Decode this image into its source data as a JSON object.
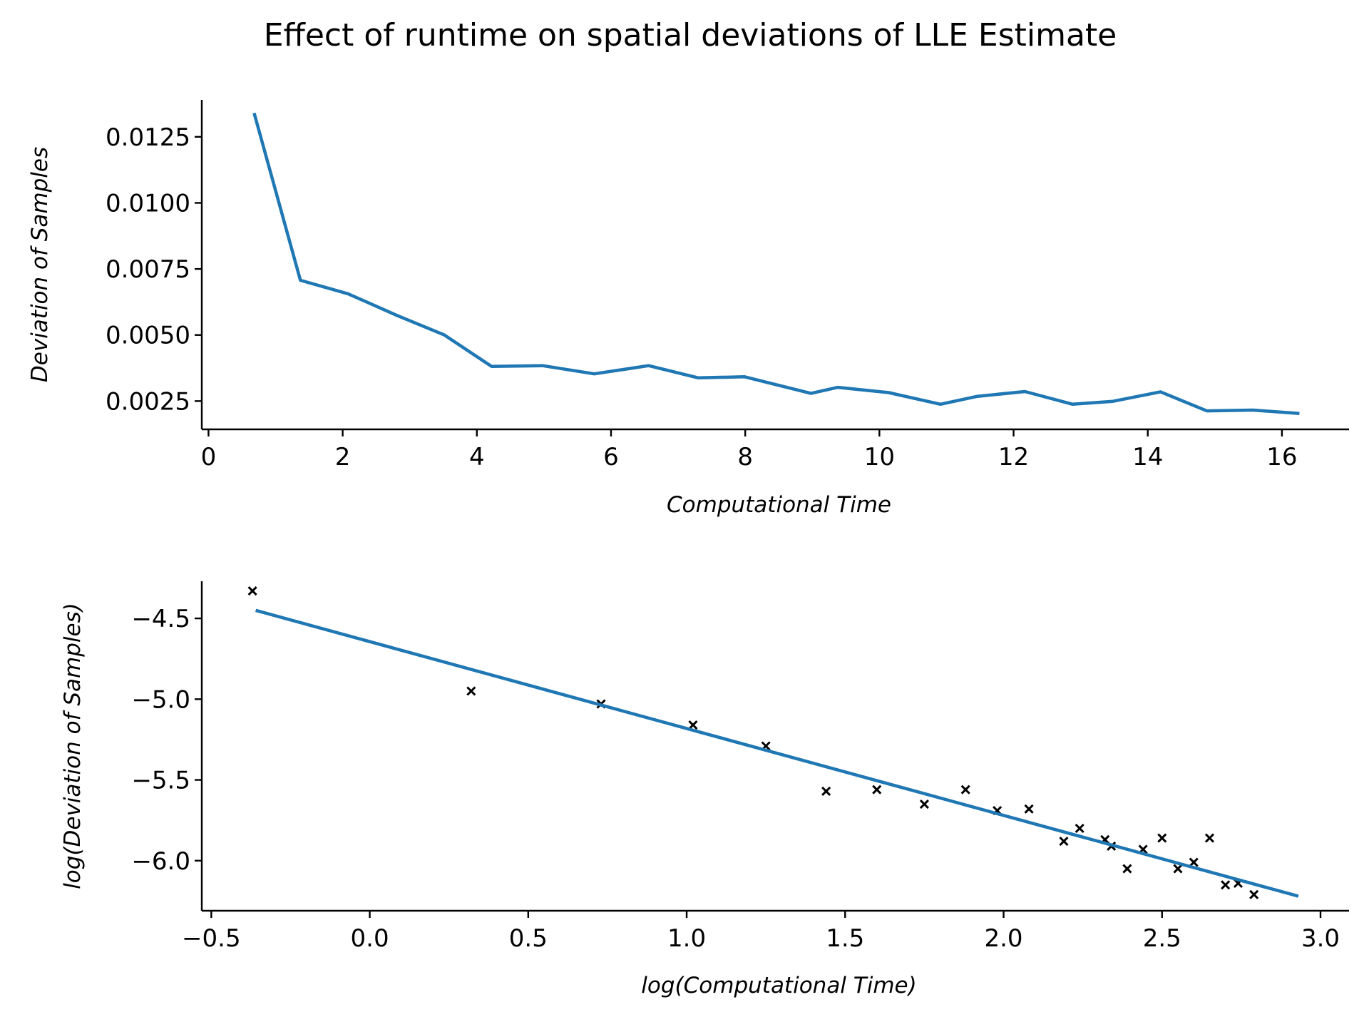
{
  "figure": {
    "suptitle": "Effect of runtime on spatial deviations of LLE Estimate"
  },
  "colors": {
    "line": "#1f77b4",
    "marker": "#000000",
    "axis": "#000000"
  },
  "chart_data": [
    {
      "type": "line",
      "title": "",
      "xlabel": "Computational Time",
      "ylabel": "Deviation of Samples",
      "xlim": [
        -0.1,
        17.0
      ],
      "ylim": [
        0.00143,
        0.0139
      ],
      "xticks": [
        0,
        2,
        4,
        6,
        8,
        10,
        12,
        14,
        16
      ],
      "xtick_labels": [
        "0",
        "2",
        "4",
        "6",
        "8",
        "10",
        "12",
        "14",
        "16"
      ],
      "yticks": [
        0.0025,
        0.005,
        0.0075,
        0.01,
        0.0125
      ],
      "ytick_labels": [
        "0.0025",
        "0.0050",
        "0.0075",
        "0.0100",
        "0.0125"
      ],
      "grid": false,
      "series": [
        {
          "x": [
            0.68,
            1.37,
            2.08,
            2.81,
            3.51,
            4.22,
            4.98,
            5.75,
            6.56,
            7.3,
            7.99,
            8.98,
            9.38,
            10.14,
            10.91,
            11.46,
            12.17,
            12.88,
            13.48,
            14.19,
            14.88,
            15.57,
            16.26
          ],
          "y": [
            0.0134,
            0.00707,
            0.00656,
            0.00574,
            0.00501,
            0.00381,
            0.00384,
            0.00353,
            0.00384,
            0.00338,
            0.00342,
            0.00279,
            0.00302,
            0.00282,
            0.00238,
            0.00268,
            0.00286,
            0.00238,
            0.00249,
            0.00285,
            0.00213,
            0.00216,
            0.00203
          ]
        }
      ]
    },
    {
      "type": "scatter",
      "title": "",
      "xlabel": "log(Computational Time)",
      "ylabel": "log(Deviation of Samples)",
      "xlim": [
        -0.53,
        3.09
      ],
      "ylim": [
        -6.31,
        -4.27
      ],
      "xticks": [
        -0.5,
        0.0,
        0.5,
        1.0,
        1.5,
        2.0,
        2.5,
        3.0
      ],
      "xtick_labels": [
        "−0.5",
        "0.0",
        "0.5",
        "1.0",
        "1.5",
        "2.0",
        "2.5",
        "3.0"
      ],
      "yticks": [
        -4.5,
        -5.0,
        -5.5,
        -6.0
      ],
      "ytick_labels": [
        "−4.5",
        "−5.0",
        "−5.5",
        "−6.0"
      ],
      "grid": false,
      "series": [
        {
          "kind": "scatter",
          "marker": "x",
          "x": [
            -0.37,
            0.32,
            0.73,
            1.02,
            1.25,
            1.44,
            1.6,
            1.75,
            1.88,
            1.98,
            2.08,
            2.19,
            2.24,
            2.32,
            2.34,
            2.39,
            2.44,
            2.5,
            2.55,
            2.6,
            2.65,
            2.7,
            2.74,
            2.79
          ],
          "y": [
            -4.33,
            -4.95,
            -5.03,
            -5.16,
            -5.29,
            -5.57,
            -5.56,
            -5.65,
            -5.56,
            -5.69,
            -5.68,
            -5.88,
            -5.8,
            -5.87,
            -5.91,
            -6.05,
            -5.93,
            -5.86,
            -6.05,
            -6.01,
            -5.86,
            -6.15,
            -6.14,
            -6.21
          ]
        },
        {
          "kind": "line",
          "x": [
            -0.36,
            2.93
          ],
          "y": [
            -4.45,
            -6.22
          ]
        }
      ]
    }
  ]
}
